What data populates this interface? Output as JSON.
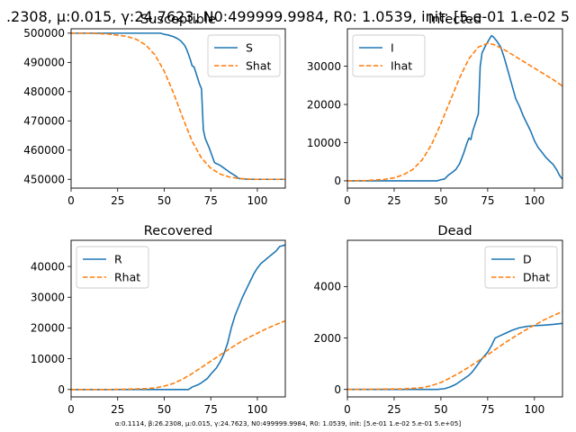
{
  "figure": {
    "suptitle": ".2308, μ:0.015, γ:24.7623, N0:499999.9984, R0: 1.0539, init: [5.e-01 1.e-02 5",
    "footer": "α:0.1114, β:26.2308, μ:0.015, γ:24.7623, N0:499999.9984, R0: 1.0539, init: [5.e-01 1.e-02 5.e-01 5.e+05]"
  },
  "colors": {
    "actual": "#1f77b4",
    "fitted": "#ff7f0e"
  },
  "chart_data": [
    {
      "type": "line",
      "title": "Susceptible",
      "xlim": [
        0,
        115
      ],
      "ylim": [
        447000,
        501500
      ],
      "xticks": [
        0,
        25,
        50,
        75,
        100
      ],
      "yticks": [
        450000,
        460000,
        470000,
        480000,
        490000,
        500000
      ],
      "ytick_labels": [
        "450000",
        "460000",
        "470000",
        "480000",
        "490000",
        "500000"
      ],
      "legend": "top-right",
      "series": [
        {
          "name": "S",
          "style": "solid",
          "color": "#1f77b4",
          "points": [
            [
              0,
              500000
            ],
            [
              20,
              500000
            ],
            [
              40,
              500000
            ],
            [
              48,
              500000
            ],
            [
              50,
              499600
            ],
            [
              52,
              499400
            ],
            [
              55,
              498800
            ],
            [
              57,
              498200
            ],
            [
              59,
              497300
            ],
            [
              61,
              495800
            ],
            [
              62,
              494500
            ],
            [
              63,
              492800
            ],
            [
              64,
              491000
            ],
            [
              65,
              488800
            ],
            [
              66,
              488500
            ],
            [
              67,
              486500
            ],
            [
              68,
              484500
            ],
            [
              69,
              482500
            ],
            [
              70,
              481000
            ],
            [
              71,
              467000
            ],
            [
              72,
              464000
            ],
            [
              74,
              461000
            ],
            [
              76,
              457500
            ],
            [
              77,
              455700
            ],
            [
              80,
              454800
            ],
            [
              85,
              452500
            ],
            [
              88,
              451300
            ],
            [
              90,
              450300
            ],
            [
              95,
              450000
            ],
            [
              115,
              450000
            ]
          ]
        },
        {
          "name": "Shat",
          "style": "dashed",
          "color": "#ff7f0e",
          "points": [
            [
              0,
              500000
            ],
            [
              10,
              500000
            ],
            [
              20,
              499700
            ],
            [
              30,
              498900
            ],
            [
              35,
              497900
            ],
            [
              40,
              496000
            ],
            [
              45,
              492600
            ],
            [
              50,
              487000
            ],
            [
              55,
              479500
            ],
            [
              60,
              471000
            ],
            [
              65,
              463000
            ],
            [
              70,
              457300
            ],
            [
              75,
              453800
            ],
            [
              80,
              451800
            ],
            [
              85,
              450800
            ],
            [
              90,
              450300
            ],
            [
              95,
              450100
            ],
            [
              100,
              450000
            ],
            [
              115,
              450000
            ]
          ]
        }
      ]
    },
    {
      "type": "line",
      "title": "Infected",
      "xlim": [
        0,
        115
      ],
      "ylim": [
        -1900,
        39800
      ],
      "xticks": [
        0,
        25,
        50,
        75,
        100
      ],
      "yticks": [
        0,
        10000,
        20000,
        30000
      ],
      "ytick_labels": [
        "0",
        "10000",
        "20000",
        "30000"
      ],
      "legend": "top-left",
      "series": [
        {
          "name": "I",
          "style": "solid",
          "color": "#1f77b4",
          "points": [
            [
              0,
              0
            ],
            [
              48,
              0
            ],
            [
              50,
              300
            ],
            [
              52,
              500
            ],
            [
              54,
              1500
            ],
            [
              56,
              2200
            ],
            [
              58,
              3000
            ],
            [
              60,
              4500
            ],
            [
              62,
              7000
            ],
            [
              64,
              10000
            ],
            [
              65,
              11200
            ],
            [
              66,
              10800
            ],
            [
              67,
              13000
            ],
            [
              68,
              14500
            ],
            [
              69,
              16000
            ],
            [
              70,
              17500
            ],
            [
              71,
              30000
            ],
            [
              72,
              33500
            ],
            [
              74,
              35500
            ],
            [
              76,
              37200
            ],
            [
              77,
              38000
            ],
            [
              78,
              37700
            ],
            [
              80,
              36500
            ],
            [
              82,
              35000
            ],
            [
              84,
              32000
            ],
            [
              86,
              28500
            ],
            [
              88,
              25000
            ],
            [
              90,
              21500
            ],
            [
              92,
              19500
            ],
            [
              94,
              17000
            ],
            [
              96,
              15000
            ],
            [
              98,
              13000
            ],
            [
              100,
              10500
            ],
            [
              102,
              8700
            ],
            [
              104,
              7500
            ],
            [
              106,
              6200
            ],
            [
              108,
              5200
            ],
            [
              110,
              4300
            ],
            [
              112,
              2800
            ],
            [
              113,
              1800
            ],
            [
              114,
              1000
            ],
            [
              115,
              500
            ]
          ]
        },
        {
          "name": "Ihat",
          "style": "dashed",
          "color": "#ff7f0e",
          "points": [
            [
              0,
              0
            ],
            [
              10,
              80
            ],
            [
              20,
              400
            ],
            [
              25,
              800
            ],
            [
              30,
              1600
            ],
            [
              35,
              3000
            ],
            [
              40,
              5500
            ],
            [
              45,
              9500
            ],
            [
              50,
              15000
            ],
            [
              55,
              21000
            ],
            [
              60,
              27000
            ],
            [
              65,
              32000
            ],
            [
              70,
              35000
            ],
            [
              75,
              36000
            ],
            [
              78,
              35700
            ],
            [
              80,
              35300
            ],
            [
              85,
              34000
            ],
            [
              90,
              32500
            ],
            [
              95,
              31000
            ],
            [
              100,
              29500
            ],
            [
              105,
              28000
            ],
            [
              110,
              26500
            ],
            [
              115,
              24800
            ]
          ]
        }
      ]
    },
    {
      "type": "line",
      "title": "Recovered",
      "xlim": [
        0,
        115
      ],
      "ylim": [
        -2400,
        48500
      ],
      "xticks": [
        0,
        25,
        50,
        75,
        100
      ],
      "yticks": [
        0,
        10000,
        20000,
        30000,
        40000
      ],
      "ytick_labels": [
        "0",
        "10000",
        "20000",
        "30000",
        "40000"
      ],
      "legend": "top-left",
      "series": [
        {
          "name": "R",
          "style": "solid",
          "color": "#1f77b4",
          "points": [
            [
              0,
              0
            ],
            [
              63,
              0
            ],
            [
              65,
              800
            ],
            [
              68,
              1500
            ],
            [
              70,
              2200
            ],
            [
              73,
              3500
            ],
            [
              75,
              5000
            ],
            [
              78,
              7000
            ],
            [
              80,
              9000
            ],
            [
              82,
              11500
            ],
            [
              84,
              15000
            ],
            [
              86,
              20000
            ],
            [
              88,
              24000
            ],
            [
              90,
              27000
            ],
            [
              92,
              30000
            ],
            [
              94,
              32500
            ],
            [
              96,
              35000
            ],
            [
              98,
              37500
            ],
            [
              100,
              39500
            ],
            [
              102,
              41000
            ],
            [
              104,
              42000
            ],
            [
              106,
              43000
            ],
            [
              108,
              44000
            ],
            [
              110,
              45000
            ],
            [
              112,
              46500
            ],
            [
              115,
              47000
            ]
          ]
        },
        {
          "name": "Rhat",
          "style": "dashed",
          "color": "#ff7f0e",
          "points": [
            [
              0,
              0
            ],
            [
              20,
              0
            ],
            [
              30,
              100
            ],
            [
              40,
              300
            ],
            [
              45,
              500
            ],
            [
              50,
              1100
            ],
            [
              55,
              2000
            ],
            [
              60,
              3400
            ],
            [
              65,
              5200
            ],
            [
              70,
              7200
            ],
            [
              75,
              9200
            ],
            [
              80,
              11200
            ],
            [
              85,
              13200
            ],
            [
              90,
              15100
            ],
            [
              95,
              16800
            ],
            [
              100,
              18300
            ],
            [
              105,
              19800
            ],
            [
              110,
              21100
            ],
            [
              115,
              22300
            ]
          ]
        }
      ]
    },
    {
      "type": "line",
      "title": "Dead",
      "xlim": [
        0,
        115
      ],
      "ylim": [
        -290,
        5800
      ],
      "xticks": [
        0,
        25,
        50,
        75,
        100
      ],
      "yticks": [
        0,
        2000,
        4000
      ],
      "ytick_labels": [
        "0",
        "2000",
        "4000"
      ],
      "legend": "top-right",
      "series": [
        {
          "name": "D",
          "style": "solid",
          "color": "#1f77b4",
          "points": [
            [
              0,
              0
            ],
            [
              48,
              0
            ],
            [
              52,
              30
            ],
            [
              55,
              100
            ],
            [
              58,
              200
            ],
            [
              60,
              300
            ],
            [
              63,
              450
            ],
            [
              65,
              550
            ],
            [
              67,
              700
            ],
            [
              69,
              900
            ],
            [
              70,
              1000
            ],
            [
              72,
              1200
            ],
            [
              75,
              1450
            ],
            [
              77,
              1700
            ],
            [
              79,
              2000
            ],
            [
              82,
              2100
            ],
            [
              85,
              2200
            ],
            [
              88,
              2300
            ],
            [
              92,
              2400
            ],
            [
              96,
              2450
            ],
            [
              100,
              2480
            ],
            [
              105,
              2500
            ],
            [
              110,
              2530
            ],
            [
              115,
              2570
            ]
          ]
        },
        {
          "name": "Dhat",
          "style": "dashed",
          "color": "#ff7f0e",
          "points": [
            [
              0,
              0
            ],
            [
              30,
              20
            ],
            [
              40,
              70
            ],
            [
              45,
              150
            ],
            [
              50,
              270
            ],
            [
              55,
              450
            ],
            [
              60,
              650
            ],
            [
              65,
              870
            ],
            [
              70,
              1110
            ],
            [
              75,
              1350
            ],
            [
              80,
              1600
            ],
            [
              85,
              1850
            ],
            [
              90,
              2080
            ],
            [
              95,
              2300
            ],
            [
              100,
              2500
            ],
            [
              105,
              2700
            ],
            [
              110,
              2870
            ],
            [
              115,
              3030
            ]
          ]
        }
      ]
    }
  ]
}
